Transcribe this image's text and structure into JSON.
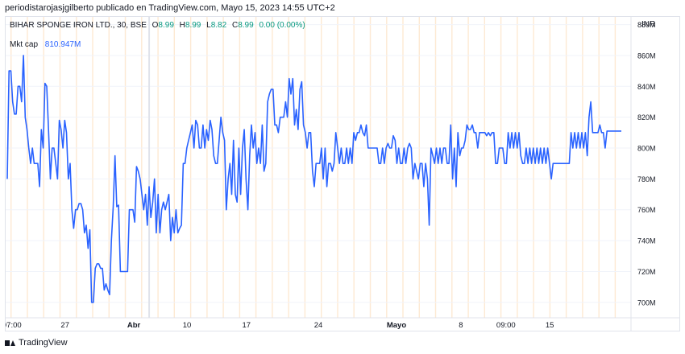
{
  "header": {
    "publisher_line": "periodistarojasjgilberto publicado en TradingView.com, Mayo 15, 2023 14:55 UTC+2"
  },
  "legend": {
    "symbol": "BIHAR SPONGE IRON LTD., 30, BSE",
    "o_key": "O",
    "o_val": "8.99",
    "h_key": "H",
    "h_val": "8.99",
    "l_key": "L",
    "l_val": "8.82",
    "c_key": "C",
    "c_val": "8.99",
    "change": "0.00 (0.00%)"
  },
  "indicator": {
    "label": "Mkt cap",
    "value": "810.947M"
  },
  "currency": "INR",
  "footer": {
    "brand": "TradingView"
  },
  "colors": {
    "line": "#2962ff",
    "session_stripe": "#fde9d3",
    "grid": "#f0f3fa",
    "axis_text": "#131722"
  },
  "chart_data": {
    "type": "line",
    "series": [
      {
        "name": "Mkt cap",
        "values": [
          780,
          850,
          850,
          830,
          822,
          822,
          840,
          840,
          830,
          860,
          820,
          812,
          800,
          790,
          800,
          790,
          790,
          790,
          775,
          812,
          800,
          842,
          840,
          812,
          780,
          800,
          800,
          790,
          780,
          818,
          812,
          800,
          818,
          810,
          780,
          790,
          760,
          748,
          760,
          760,
          764,
          764,
          760,
          745,
          750,
          735,
          747,
          700,
          700,
          722,
          725,
          725,
          722,
          722,
          708,
          712,
          708,
          705,
          740,
          762,
          795,
          762,
          763,
          720,
          720,
          720,
          720,
          720,
          760,
          760,
          760,
          752,
          788,
          785,
          780,
          770,
          760,
          770,
          750,
          775,
          755,
          765,
          780,
          745,
          770,
          745,
          760,
          765,
          760,
          765,
          770,
          740,
          755,
          745,
          760,
          745,
          748,
          750,
          790,
          790,
          800,
          805,
          810,
          815,
          800,
          818,
          815,
          800,
          800,
          815,
          800,
          812,
          805,
          818,
          812,
          795,
          790,
          790,
          805,
          820,
          810,
          805,
          760,
          780,
          790,
          770,
          805,
          770,
          765,
          800,
          770,
          800,
          812,
          780,
          760,
          795,
          815,
          800,
          810,
          790,
          800,
          790,
          815,
          785,
          790,
          830,
          835,
          838,
          838,
          815,
          815,
          810,
          820,
          820,
          820,
          830,
          820,
          845,
          835,
          845,
          815,
          825,
          812,
          838,
          843,
          815,
          810,
          800,
          810,
          810,
          785,
          775,
          790,
          790,
          790,
          800,
          780,
          800,
          775,
          790,
          790,
          785,
          790,
          810,
          800,
          790,
          800,
          790,
          790,
          800,
          790,
          800,
          790,
          810,
          805,
          810,
          810,
          815,
          810,
          808,
          815,
          800,
          800,
          800,
          800,
          800,
          800,
          790,
          790,
          800,
          790,
          800,
          803,
          800,
          800,
          808,
          805,
          790,
          800,
          790,
          790,
          800,
          790,
          800,
          803,
          800,
          780,
          790,
          785,
          780,
          790,
          790,
          775,
          790,
          780,
          750,
          800,
          795,
          790,
          800,
          790,
          800,
          790,
          800,
          800,
          790,
          790,
          815,
          780,
          800,
          775,
          810,
          795,
          800,
          800,
          805,
          815,
          812,
          812,
          815,
          810,
          810,
          800,
          810,
          810,
          810,
          810,
          808,
          810,
          808,
          810,
          810,
          790,
          790,
          800,
          800,
          800,
          790,
          790,
          810,
          800,
          810,
          800,
          810,
          800,
          810,
          795,
          790,
          790,
          800,
          790,
          800,
          790,
          800,
          790,
          800,
          790,
          800,
          790,
          800,
          790,
          800,
          790,
          780,
          790,
          790,
          790,
          790,
          790,
          790,
          790,
          790,
          790,
          790,
          810,
          800,
          810,
          800,
          810,
          800,
          810,
          800,
          810,
          795,
          820,
          830,
          810,
          810,
          810,
          810,
          815,
          810,
          810,
          800,
          811,
          811,
          811,
          811,
          811,
          811,
          811,
          811,
          811
        ]
      }
    ],
    "x_labels": [
      "07:00",
      "27",
      "Abr",
      "10",
      "17",
      "24",
      "Mayo",
      "8",
      "09:00",
      "15"
    ],
    "x_label_fractions": [
      0.01,
      0.095,
      0.205,
      0.29,
      0.385,
      0.5,
      0.625,
      0.728,
      0.8,
      0.87
    ],
    "y_ticks": [
      880,
      860,
      840,
      820,
      800,
      780,
      760,
      740,
      720,
      700
    ],
    "y_tick_labels": [
      "880M",
      "860M",
      "840M",
      "820M",
      "800M",
      "780M",
      "760M",
      "740M",
      "720M",
      "700M"
    ],
    "ylim": [
      690,
      885
    ],
    "grid": true,
    "session_stripes": 38,
    "current_marker": "Abr"
  }
}
